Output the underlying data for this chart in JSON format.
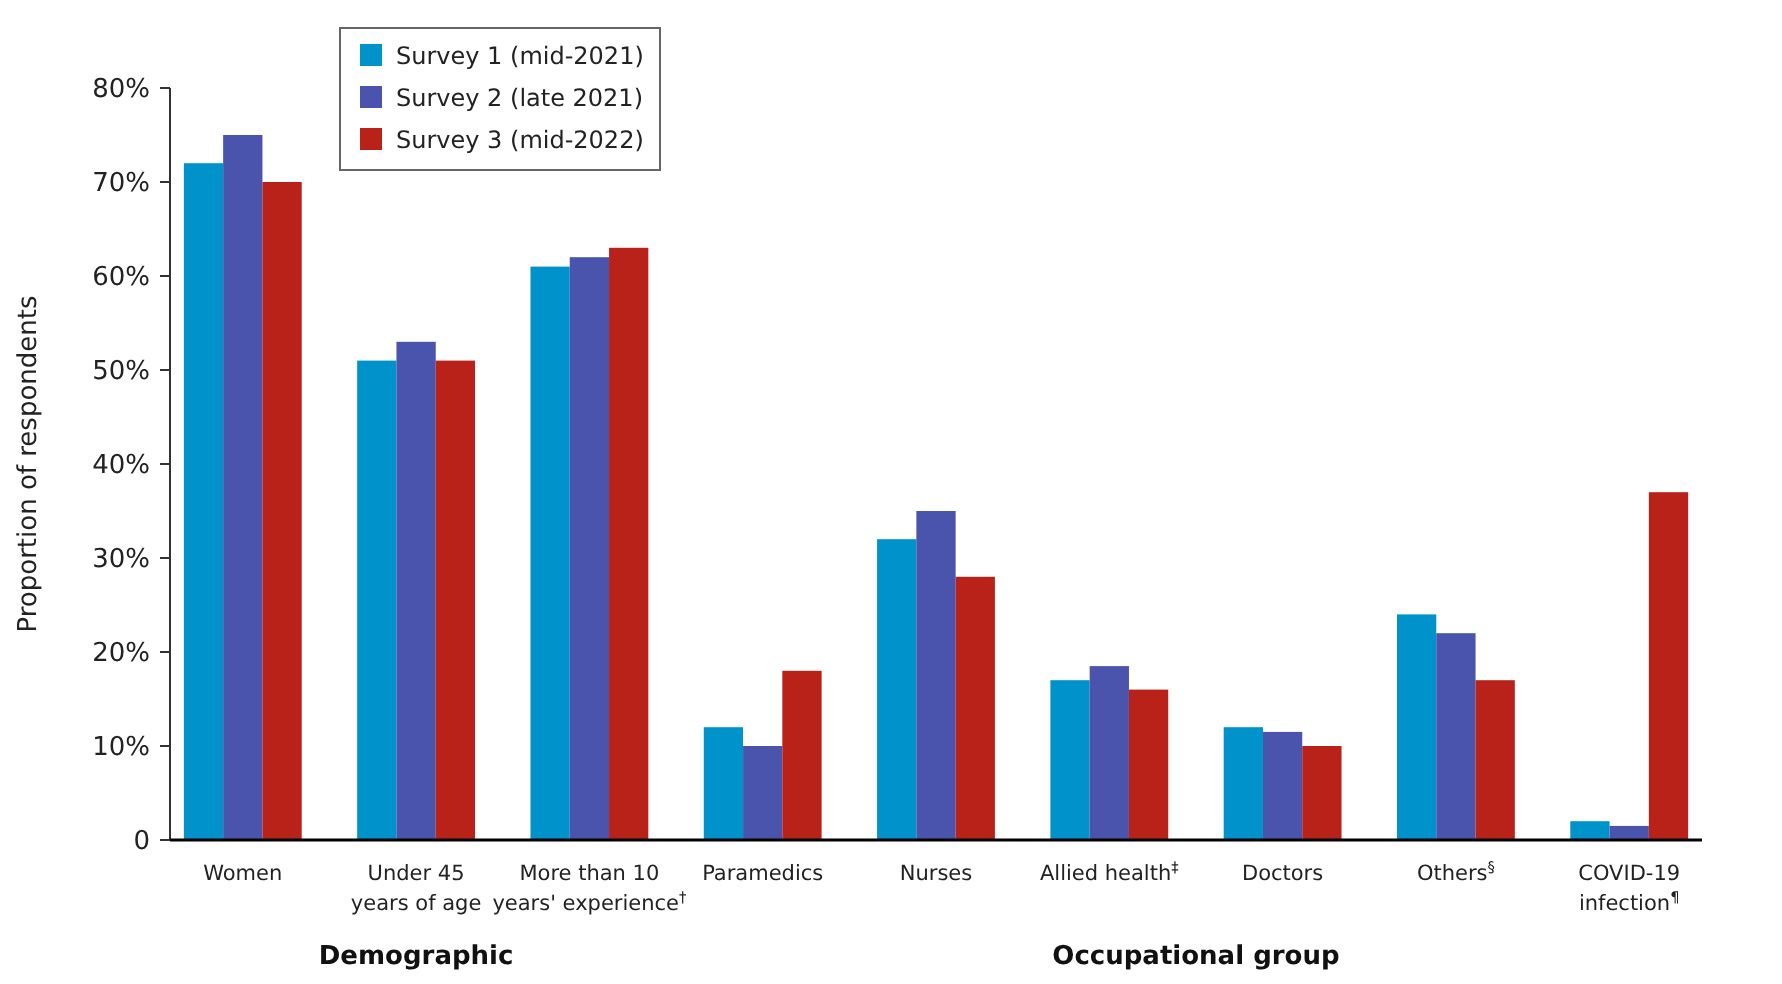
{
  "chart_data": {
    "type": "bar",
    "ylabel": "Proportion of respondents",
    "categories": [
      "Women",
      "Under 45\nyears of age",
      "More than 10\nyears' experience$^{†}$",
      "Paramedics",
      "Nurses",
      "Allied health$^{‡}$",
      "Doctors",
      "Others$^{§}$",
      "COVID-19\ninfection$^{¶}$"
    ],
    "series": [
      {
        "name": "Survey 1 (mid-2021)",
        "color": "#0093cb",
        "values": [
          72,
          51,
          61,
          12,
          32,
          17,
          12,
          24,
          2
        ]
      },
      {
        "name": "Survey 2 (late 2021)",
        "color": "#4a54ad",
        "values": [
          75,
          53,
          62,
          10,
          35,
          18.5,
          11.5,
          22,
          1.5
        ]
      },
      {
        "name": "Survey 3 (mid-2022)",
        "color": "#b92218",
        "values": [
          70,
          51,
          63,
          18,
          28,
          16,
          10,
          17,
          37
        ]
      }
    ],
    "ylim": [
      0,
      80
    ],
    "yticks": [
      {
        "value": 0,
        "label": "0"
      },
      {
        "value": 10,
        "label": "10%"
      },
      {
        "value": 20,
        "label": "20%"
      },
      {
        "value": 30,
        "label": "30%"
      },
      {
        "value": 40,
        "label": "40%"
      },
      {
        "value": 50,
        "label": "50%"
      },
      {
        "value": 60,
        "label": "60%"
      },
      {
        "value": 70,
        "label": "70%"
      },
      {
        "value": 80,
        "label": "80%"
      }
    ],
    "annotations": [
      "Demographic",
      "Occupational group"
    ],
    "legend": "top left",
    "grid": false
  }
}
